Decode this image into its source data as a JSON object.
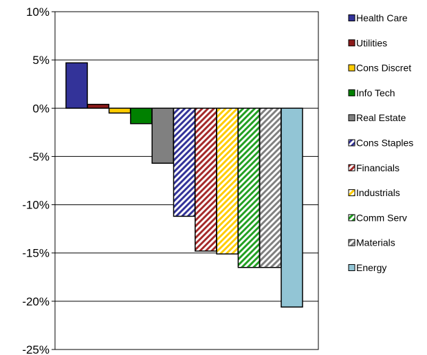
{
  "chart_data": {
    "type": "bar",
    "title": "",
    "xlabel": "",
    "ylabel": "",
    "ylim": [
      -25,
      10
    ],
    "y_tick_step": 5,
    "y_tick_format": "percent",
    "grid": "horizontal",
    "legend_position": "right",
    "series": [
      {
        "name": "Health Care",
        "value": 4.7,
        "color": "#333399",
        "pattern": "solid"
      },
      {
        "name": "Utilities",
        "value": 0.4,
        "color": "#8B1A1A",
        "pattern": "solid"
      },
      {
        "name": "Cons Discret",
        "value": -0.5,
        "color": "#FFCC00",
        "pattern": "solid"
      },
      {
        "name": "Info Tech",
        "value": -1.6,
        "color": "#008000",
        "pattern": "solid"
      },
      {
        "name": "Real Estate",
        "value": -5.7,
        "color": "#808080",
        "pattern": "solid"
      },
      {
        "name": "Cons Staples",
        "value": -11.2,
        "color": "#333399",
        "pattern": "hatched"
      },
      {
        "name": "Financials",
        "value": -14.8,
        "color": "#A52A2A",
        "pattern": "hatched"
      },
      {
        "name": "Industrials",
        "value": -15.1,
        "color": "#FFCC00",
        "pattern": "hatched"
      },
      {
        "name": "Comm Serv",
        "value": -16.5,
        "color": "#22A022",
        "pattern": "hatched"
      },
      {
        "name": "Materials",
        "value": -16.5,
        "color": "#808080",
        "pattern": "hatched"
      },
      {
        "name": "Energy",
        "value": -20.6,
        "color": "#92C5D5",
        "pattern": "solid"
      }
    ]
  }
}
